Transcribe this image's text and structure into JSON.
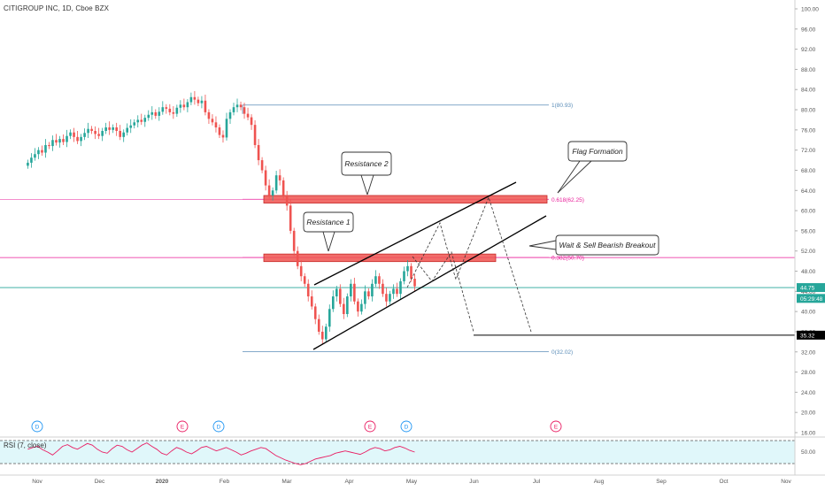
{
  "header": {
    "symbol_title": "CITIGROUP INC, 1D, Cboe BZX"
  },
  "rsi": {
    "title": "RSI (7, close)",
    "level_label": "50.00",
    "values": [
      55,
      58,
      60,
      54,
      50,
      45,
      52,
      60,
      63,
      58,
      55,
      60,
      65,
      62,
      55,
      50,
      48,
      56,
      62,
      60,
      54,
      50,
      56,
      62,
      66,
      60,
      55,
      48,
      45,
      52,
      58,
      55,
      50,
      47,
      52,
      58,
      60,
      56,
      52,
      55,
      58,
      54,
      50,
      45,
      48,
      52,
      55,
      58,
      56,
      50,
      44,
      40,
      36,
      33,
      30,
      28,
      30,
      34,
      38,
      40,
      42,
      44,
      48,
      50,
      52,
      50,
      48,
      46,
      50,
      55,
      58,
      56,
      52,
      54,
      58,
      60,
      57,
      53,
      50
    ]
  },
  "chart_data": {
    "type": "candlestick",
    "x_ticks": [
      "Nov",
      "Dec",
      "2020",
      "Feb",
      "Mar",
      "Apr",
      "May",
      "Jun",
      "Jul",
      "Aug",
      "Sep",
      "Oct",
      "Nov"
    ],
    "y_ticks": [
      "100.00",
      "96.00",
      "92.00",
      "88.00",
      "84.00",
      "80.00",
      "76.00",
      "72.00",
      "68.00",
      "64.00",
      "60.00",
      "56.00",
      "52.00",
      "48.00",
      "44.00",
      "40.00",
      "36.00",
      "32.00",
      "28.00",
      "24.00",
      "20.00",
      "16.00"
    ],
    "ylim": [
      16,
      100
    ],
    "close_series": [
      69.5,
      70.5,
      71.2,
      72,
      71.5,
      73,
      72.8,
      74,
      73.5,
      74.2,
      73.6,
      74.8,
      75.5,
      74.6,
      73.8,
      74.6,
      75.4,
      76.2,
      75.8,
      75.2,
      74.8,
      75.8,
      76.5,
      76,
      76.5,
      75.8,
      74.6,
      75.5,
      76.4,
      76.9,
      77.5,
      78,
      77.6,
      78.4,
      79,
      79.5,
      78.8,
      79.6,
      80.5,
      80.2,
      79.5,
      79.2,
      80.4,
      81,
      80.5,
      81.5,
      82.5,
      82,
      81.3,
      81.8,
      79.5,
      78.2,
      77.5,
      76.5,
      75,
      74.5,
      78.2,
      79.5,
      80.5,
      81,
      80.5,
      79.2,
      78.5,
      77,
      73,
      70,
      68,
      65,
      63,
      64,
      67,
      66,
      63,
      61,
      56,
      52,
      49,
      47,
      45.5,
      43,
      41,
      38.5,
      36,
      34.5,
      37,
      40.5,
      43,
      44.5,
      41.5,
      39.5,
      43,
      45.5,
      42,
      40,
      41.5,
      44,
      43,
      45.5,
      47,
      45.5,
      43.5,
      42,
      43.5,
      44.5,
      43.5,
      46,
      48,
      49,
      46.5,
      45
    ],
    "price_labels": [
      {
        "text": "44.75",
        "value": 44.75,
        "color": "#26a69a"
      },
      {
        "text": "05:29:48",
        "value": 42.6,
        "color": "#26a69a"
      },
      {
        "text": "35.32",
        "value": 35.32,
        "color": "#000000"
      }
    ],
    "fib_levels": [
      {
        "label": "1(80.93)",
        "value": 80.93,
        "color": "#5b8db8"
      },
      {
        "label": "0.618(62.25)",
        "value": 62.25,
        "color": "#e91e9a"
      },
      {
        "label": "0.382(50.70)",
        "value": 50.7,
        "color": "#e91e9a"
      },
      {
        "label": "0(32.02)",
        "value": 32.02,
        "color": "#5b8db8"
      }
    ],
    "current_price": 44.75,
    "target_price": 35.32,
    "zones": [
      {
        "name": "Resistance 2",
        "low": 61.5,
        "high": 63.0
      },
      {
        "name": "Resistance 1",
        "low": 49.9,
        "high": 51.4
      }
    ],
    "callouts": [
      "Resistance 2",
      "Resistance 1",
      "Flag Formation",
      "Wait & Sell Bearish Breakout"
    ],
    "event_markers": [
      {
        "text": "D",
        "color": "#2196f3"
      },
      {
        "text": "E",
        "color": "#e91e63"
      },
      {
        "text": "D",
        "color": "#2196f3"
      },
      {
        "text": "E",
        "color": "#e91e63"
      },
      {
        "text": "D",
        "color": "#2196f3"
      },
      {
        "text": "E",
        "color": "#e91e63"
      }
    ],
    "colors": {
      "up": "#26a69a",
      "down": "#ef5350",
      "zone": "#ef5350",
      "rsi": "#e91e63",
      "rsi_band": "#e0f7fa"
    }
  }
}
